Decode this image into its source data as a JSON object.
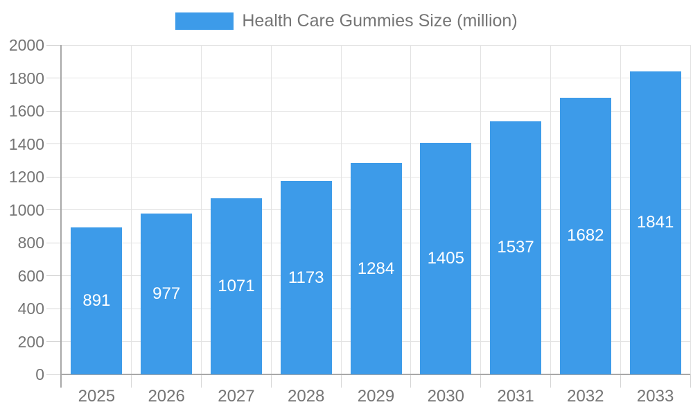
{
  "legend": {
    "label": "Health Care Gummies Size (million)"
  },
  "colors": {
    "bar": "#3d9be9",
    "bar_label": "#ffffff",
    "axis_line": "#a8a8a8",
    "gridline": "#e3e3e3",
    "tick": "#d6d6d6",
    "text": "#757575",
    "background": "#ffffff"
  },
  "chart_data": {
    "type": "bar",
    "title": "",
    "categories": [
      "2025",
      "2026",
      "2027",
      "2028",
      "2029",
      "2030",
      "2031",
      "2032",
      "2033"
    ],
    "series": [
      {
        "name": "Health Care Gummies Size (million)",
        "values": [
          891,
          977,
          1071,
          1173,
          1284,
          1405,
          1537,
          1682,
          1841
        ]
      }
    ],
    "xlabel": "",
    "ylabel": "",
    "ylim": [
      0,
      2000
    ],
    "ytick_step": 200,
    "ytick_labels": [
      "0",
      "200",
      "400",
      "600",
      "800",
      "1000",
      "1200",
      "1400",
      "1600",
      "1800",
      "2000"
    ],
    "grid": true,
    "legend_position": "top-center",
    "value_label_position": "inside-center"
  }
}
